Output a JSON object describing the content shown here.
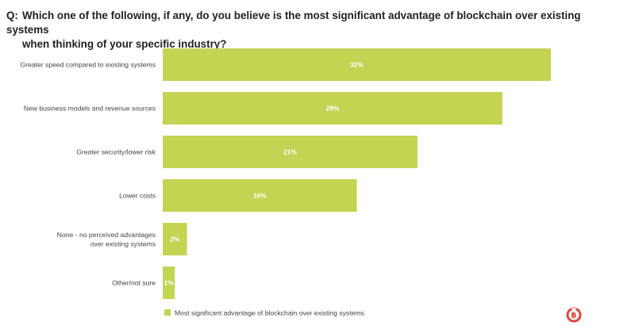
{
  "title": {
    "prefix": "Q:",
    "line1": "Which one of the following, if any, do you believe is the most significant advantage of blockchain over existing systems",
    "line2": "when thinking of your specific industry?"
  },
  "chart_data": {
    "type": "bar",
    "orientation": "horizontal",
    "title": "Q: Which one of the following, if any, do you believe is the most significant advantage of blockchain over existing systems when thinking of your specific industry?",
    "categories": [
      [
        "Greater speed compared to existing systems"
      ],
      [
        "New business models and revenue sources"
      ],
      [
        "Greater security/lower risk"
      ],
      [
        "Lower costs"
      ],
      [
        "None - no perceived advantages",
        "over existing systems"
      ],
      [
        "Other/not sure"
      ]
    ],
    "values": [
      32,
      28,
      21,
      16,
      2,
      1
    ],
    "value_labels": [
      "32%",
      "28%",
      "21%",
      "16%",
      "2%",
      "1%"
    ],
    "unit": "%",
    "xlim": [
      0,
      32
    ],
    "series_name": "Most significant advantage of blockchain over existing systems",
    "legend_position": "bottom",
    "bar_color": "#c3d352",
    "value_label_color": "#ffffff"
  },
  "logo": {
    "name": "bitcoin-logo",
    "outer_color": "#e0473e",
    "inner_color": "#ffffff",
    "glyph": "฿"
  }
}
